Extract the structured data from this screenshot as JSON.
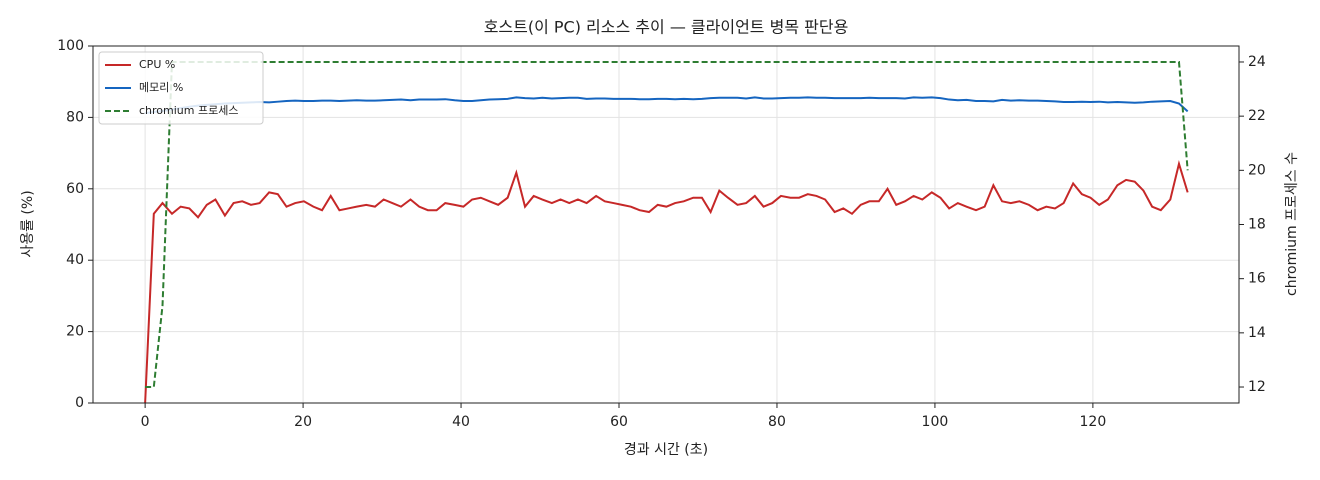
{
  "chart_data": {
    "type": "line",
    "title": "호스트(이 PC) 리소스 추이 — 클라이언트 병목 판단용",
    "xlabel": "경과 시간 (초)",
    "ylabel": "사용률 (%)",
    "y2label": "chromium 프로세스 수",
    "x": [
      0,
      1.1,
      2.2,
      3.4,
      4.5,
      5.6,
      6.7,
      7.8,
      8.9,
      10.1,
      11.2,
      12.3,
      13.4,
      14.5,
      15.7,
      16.8,
      17.9,
      19.0,
      20.1,
      21.3,
      22.4,
      23.5,
      24.6,
      25.7,
      26.8,
      28.0,
      29.1,
      30.2,
      31.3,
      32.4,
      33.6,
      34.7,
      35.8,
      36.9,
      38.0,
      39.2,
      40.3,
      41.4,
      42.5,
      43.6,
      44.7,
      45.9,
      47.0,
      48.1,
      49.2,
      50.3,
      51.5,
      52.6,
      53.7,
      54.8,
      55.9,
      57.1,
      58.2,
      59.3,
      60.4,
      61.5,
      62.6,
      63.8,
      64.9,
      66.0,
      67.1,
      68.2,
      69.4,
      70.5,
      71.6,
      72.7,
      73.8,
      75.0,
      76.1,
      77.2,
      78.3,
      79.4,
      80.5,
      81.7,
      82.8,
      83.9,
      85.0,
      86.1,
      87.3,
      88.4,
      89.5,
      90.6,
      91.7,
      92.9,
      94.0,
      95.1,
      96.2,
      97.3,
      98.4,
      99.6,
      100.7,
      101.8,
      102.9,
      104.0,
      105.2,
      106.3,
      107.4,
      108.5,
      109.6,
      110.7,
      111.9,
      113.0,
      114.1,
      115.2,
      116.3,
      117.5,
      118.6,
      119.7,
      120.8,
      121.9,
      123.1,
      124.2,
      125.3,
      126.4,
      127.5,
      128.6,
      129.8,
      130.9,
      132.0
    ],
    "series": [
      {
        "name": "CPU %",
        "color": "#c62828",
        "linestyle": "solid",
        "values": [
          0,
          53,
          56,
          53,
          55,
          54.5,
          52,
          55.5,
          57,
          52.5,
          56,
          56.5,
          55.5,
          56,
          59,
          58.5,
          55,
          56,
          56.5,
          55,
          54,
          58,
          54,
          54.5,
          55,
          55.5,
          55,
          57,
          56,
          55,
          57,
          55,
          54,
          54,
          56,
          55.5,
          55,
          57,
          57.5,
          56.5,
          55.5,
          57.5,
          64.5,
          55,
          58,
          57,
          56,
          57,
          56,
          57,
          56,
          58,
          56.5,
          56,
          55.5,
          55,
          54,
          53.5,
          55.5,
          55,
          56,
          56.5,
          57.5,
          57.5,
          53.5,
          59.5,
          57.5,
          55.5,
          56,
          58,
          55,
          56,
          58,
          57.5,
          57.5,
          58.5,
          58,
          57,
          53.5,
          54.5,
          53,
          55.5,
          56.5,
          56.5,
          60,
          55.5,
          56.5,
          58,
          57,
          59,
          57.5,
          54.5,
          56,
          55,
          54,
          55,
          61,
          56.5,
          56,
          56.5,
          55.5,
          54,
          55,
          54.5,
          56,
          61.5,
          58.5,
          57.5,
          55.5,
          57,
          61,
          62.5,
          62,
          59.5,
          55,
          54,
          57,
          67,
          59
        ]
      },
      {
        "name": "메모리 %",
        "color": "#1565c0",
        "linestyle": "solid",
        "values": [
          81.2,
          81.5,
          81.8,
          82.2,
          82.6,
          83.0,
          83.3,
          83.5,
          83.7,
          83.9,
          84.0,
          84.1,
          84.2,
          84.3,
          84.2,
          84.4,
          84.6,
          84.7,
          84.6,
          84.6,
          84.7,
          84.7,
          84.6,
          84.7,
          84.8,
          84.7,
          84.7,
          84.8,
          84.9,
          85.0,
          84.8,
          85.0,
          85.0,
          85.0,
          85.1,
          84.8,
          84.6,
          84.6,
          84.8,
          85.0,
          85.1,
          85.2,
          85.6,
          85.4,
          85.3,
          85.5,
          85.3,
          85.4,
          85.5,
          85.5,
          85.2,
          85.3,
          85.3,
          85.2,
          85.2,
          85.2,
          85.1,
          85.1,
          85.2,
          85.2,
          85.1,
          85.2,
          85.1,
          85.2,
          85.4,
          85.5,
          85.5,
          85.5,
          85.3,
          85.6,
          85.3,
          85.3,
          85.4,
          85.5,
          85.5,
          85.6,
          85.5,
          85.5,
          85.4,
          85.4,
          85.4,
          85.4,
          85.5,
          85.4,
          85.4,
          85.4,
          85.3,
          85.6,
          85.5,
          85.6,
          85.4,
          85.0,
          84.8,
          84.9,
          84.6,
          84.6,
          84.5,
          84.9,
          84.7,
          84.8,
          84.7,
          84.7,
          84.6,
          84.5,
          84.3,
          84.3,
          84.4,
          84.3,
          84.4,
          84.2,
          84.3,
          84.2,
          84.1,
          84.2,
          84.4,
          84.5,
          84.6,
          83.9,
          81.7
        ]
      },
      {
        "name": "chromium 프로세스",
        "color": "#2e7d32",
        "linestyle": "dashed",
        "axis": "y2",
        "values": [
          12,
          12,
          15,
          24,
          24,
          24,
          24,
          24,
          24,
          24,
          24,
          24,
          24,
          24,
          24,
          24,
          24,
          24,
          24,
          24,
          24,
          24,
          24,
          24,
          24,
          24,
          24,
          24,
          24,
          24,
          24,
          24,
          24,
          24,
          24,
          24,
          24,
          24,
          24,
          24,
          24,
          24,
          24,
          24,
          24,
          24,
          24,
          24,
          24,
          24,
          24,
          24,
          24,
          24,
          24,
          24,
          24,
          24,
          24,
          24,
          24,
          24,
          24,
          24,
          24,
          24,
          24,
          24,
          24,
          24,
          24,
          24,
          24,
          24,
          24,
          24,
          24,
          24,
          24,
          24,
          24,
          24,
          24,
          24,
          24,
          24,
          24,
          24,
          24,
          24,
          24,
          24,
          24,
          24,
          24,
          24,
          24,
          24,
          24,
          24,
          24,
          24,
          24,
          24,
          24,
          24,
          24,
          24,
          24,
          24,
          24,
          24,
          24,
          24,
          24,
          24,
          24,
          24,
          20
        ]
      }
    ],
    "xlim": [
      -6.6,
      138.5
    ],
    "xticks": [
      0,
      20,
      40,
      60,
      80,
      100,
      120
    ],
    "ylim": [
      0,
      100
    ],
    "yticks": [
      0,
      20,
      40,
      60,
      80,
      100
    ],
    "y2lim": [
      11.41,
      24.59
    ],
    "y2ticks": [
      12,
      14,
      16,
      18,
      20,
      22,
      24
    ],
    "grid": true,
    "legend": "upper-left"
  }
}
